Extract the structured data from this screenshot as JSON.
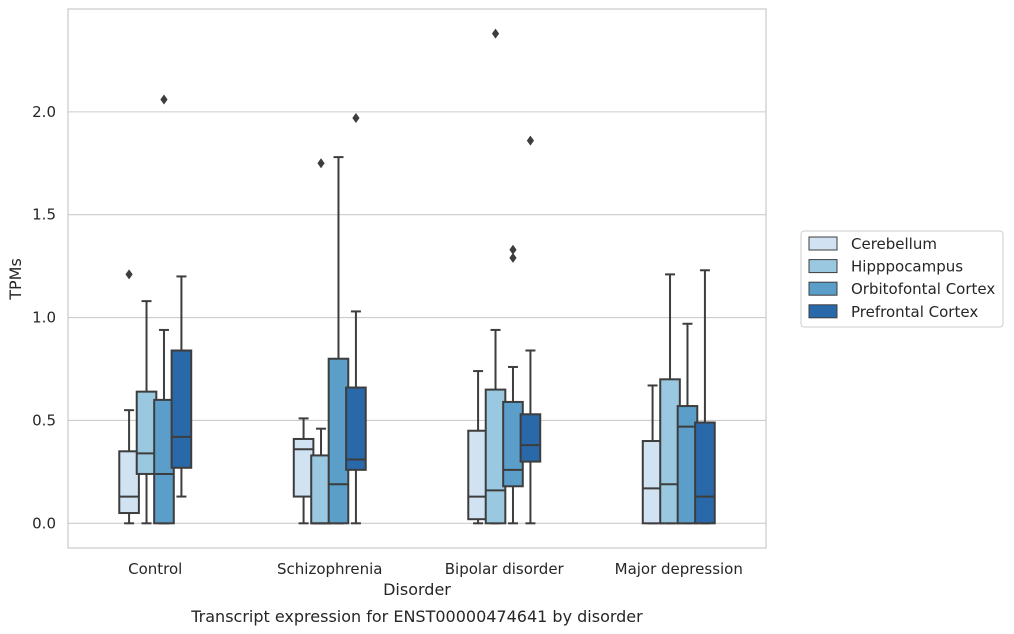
{
  "caption": "Transcript expression for ENST00000474641 by disorder",
  "chart_data": {
    "type": "box",
    "xlabel": "Disorder",
    "ylabel": "TPMs",
    "ylim": [
      -0.12,
      2.5
    ],
    "yticks": [
      0.0,
      0.5,
      1.0,
      1.5,
      2.0
    ],
    "ytick_labels": [
      "0.0",
      "0.5",
      "1.0",
      "1.5",
      "2.0"
    ],
    "grid": "horizontal",
    "legend_position": "right",
    "categories": [
      "Control",
      "Schizophrenia",
      "Bipolar disorder",
      "Major depression"
    ],
    "series": [
      {
        "name": "Cerebellum",
        "color": "#d1e2f3",
        "boxes": [
          {
            "whislo": 0.0,
            "q1": 0.05,
            "med": 0.13,
            "q3": 0.35,
            "whishi": 0.55,
            "fliers": [
              1.21
            ]
          },
          {
            "whislo": 0.0,
            "q1": 0.13,
            "med": 0.36,
            "q3": 0.41,
            "whishi": 0.51,
            "fliers": []
          },
          {
            "whislo": 0.0,
            "q1": 0.02,
            "med": 0.13,
            "q3": 0.45,
            "whishi": 0.74,
            "fliers": []
          },
          {
            "whislo": 0.0,
            "q1": 0.0,
            "med": 0.17,
            "q3": 0.4,
            "whishi": 0.67,
            "fliers": []
          }
        ]
      },
      {
        "name": "Hipppocampus",
        "color": "#9ac8e0",
        "boxes": [
          {
            "whislo": 0.0,
            "q1": 0.24,
            "med": 0.34,
            "q3": 0.64,
            "whishi": 1.08,
            "fliers": []
          },
          {
            "whislo": 0.0,
            "q1": 0.0,
            "med": 0.0,
            "q3": 0.33,
            "whishi": 0.46,
            "fliers": [
              1.75
            ]
          },
          {
            "whislo": 0.0,
            "q1": 0.0,
            "med": 0.16,
            "q3": 0.65,
            "whishi": 0.94,
            "fliers": [
              2.38
            ]
          },
          {
            "whislo": 0.0,
            "q1": 0.0,
            "med": 0.19,
            "q3": 0.7,
            "whishi": 1.21,
            "fliers": []
          }
        ]
      },
      {
        "name": "Orbitofontal Cortex",
        "color": "#5a9ec9",
        "boxes": [
          {
            "whislo": 0.0,
            "q1": 0.0,
            "med": 0.24,
            "q3": 0.6,
            "whishi": 0.94,
            "fliers": [
              2.06
            ]
          },
          {
            "whislo": 0.0,
            "q1": 0.0,
            "med": 0.19,
            "q3": 0.8,
            "whishi": 1.78,
            "fliers": []
          },
          {
            "whislo": 0.0,
            "q1": 0.18,
            "med": 0.26,
            "q3": 0.59,
            "whishi": 0.76,
            "fliers": [
              1.29,
              1.33
            ]
          },
          {
            "whislo": 0.0,
            "q1": 0.0,
            "med": 0.47,
            "q3": 0.57,
            "whishi": 0.97,
            "fliers": []
          }
        ]
      },
      {
        "name": "Prefrontal Cortex",
        "color": "#2a69a9",
        "boxes": [
          {
            "whislo": 0.13,
            "q1": 0.27,
            "med": 0.42,
            "q3": 0.84,
            "whishi": 1.2,
            "fliers": []
          },
          {
            "whislo": 0.0,
            "q1": 0.26,
            "med": 0.31,
            "q3": 0.66,
            "whishi": 1.03,
            "fliers": [
              1.97
            ]
          },
          {
            "whislo": 0.0,
            "q1": 0.3,
            "med": 0.38,
            "q3": 0.53,
            "whishi": 0.84,
            "fliers": [
              1.86
            ]
          },
          {
            "whislo": 0.0,
            "q1": 0.0,
            "med": 0.13,
            "q3": 0.49,
            "whishi": 1.23,
            "fliers": []
          }
        ]
      }
    ]
  }
}
